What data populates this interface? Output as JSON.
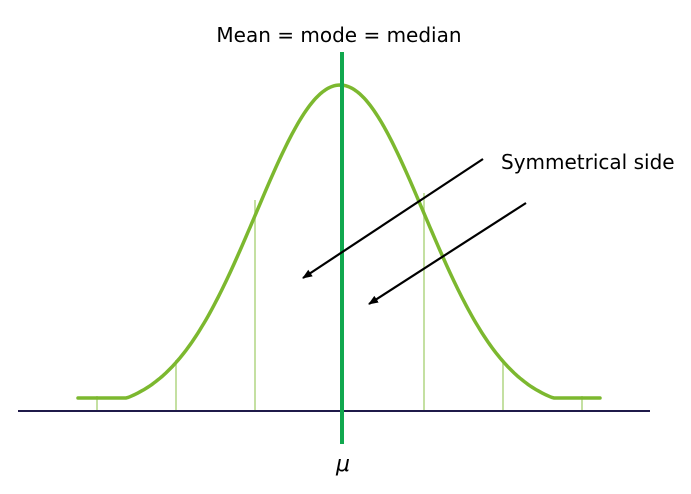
{
  "labels": {
    "top": "Mean = mode = median",
    "side": "Symmetrical side",
    "mu": "μ"
  },
  "colors": {
    "curve": "#7cb82f",
    "sigma_lines": "#b6d98a",
    "mean_line": "#11a84e",
    "baseline": "#1f1a4a",
    "arrows": "#000000"
  }
}
